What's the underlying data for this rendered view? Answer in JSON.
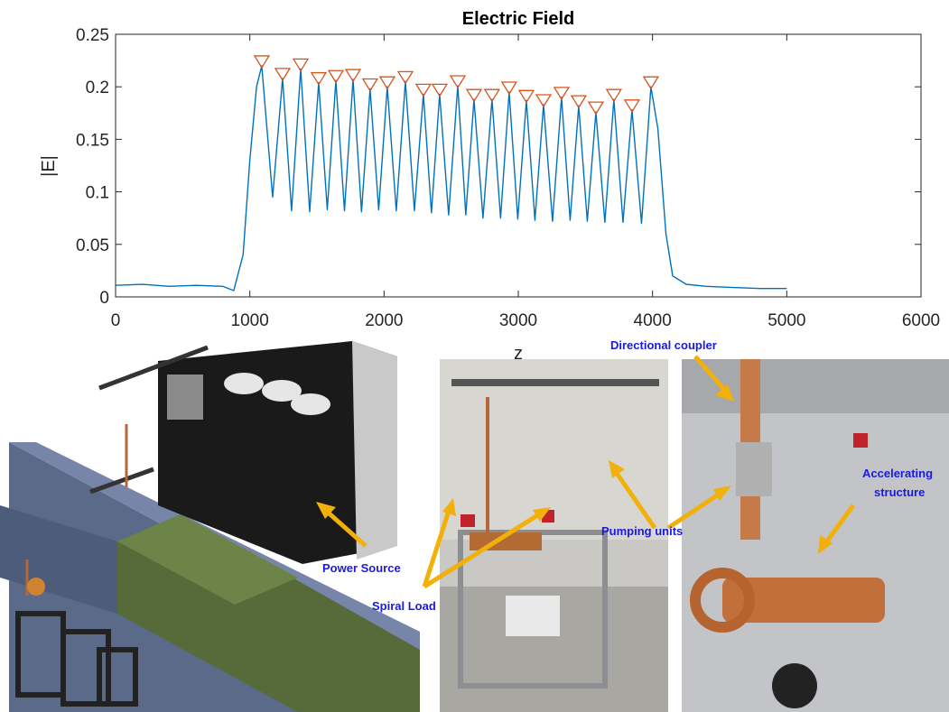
{
  "chart_data": {
    "type": "line",
    "title": "Electric Field",
    "xlabel": "z",
    "ylabel": "|E|",
    "xlim": [
      0,
      6000
    ],
    "xticks": [
      0,
      1000,
      2000,
      3000,
      4000,
      5000,
      6000
    ],
    "ylim": [
      0,
      0.25
    ],
    "yticks": [
      0,
      0.05,
      0.1,
      0.15,
      0.2,
      0.25
    ],
    "series": [
      {
        "color": "#0072bd",
        "marker": "none",
        "x": [
          0,
          200,
          400,
          600,
          800,
          880,
          950,
          1000,
          1050,
          1089,
          1170,
          1244,
          1311,
          1379,
          1446,
          1513,
          1577,
          1641,
          1705,
          1769,
          1832,
          1896,
          1960,
          2024,
          2091,
          2159,
          2226,
          2293,
          2353,
          2414,
          2481,
          2549,
          2609,
          2670,
          2737,
          2804,
          2868,
          2932,
          2996,
          3060,
          3124,
          3188,
          3255,
          3322,
          3386,
          3450,
          3514,
          3578,
          3645,
          3712,
          3780,
          3847,
          3918,
          3988,
          4040,
          4100,
          4150,
          4250,
          4400,
          4600,
          4800,
          5000
        ],
        "values": [
          0.011,
          0.012,
          0.01,
          0.011,
          0.01,
          0.006,
          0.04,
          0.13,
          0.2,
          0.22,
          0.095,
          0.208,
          0.082,
          0.217,
          0.081,
          0.204,
          0.083,
          0.206,
          0.082,
          0.207,
          0.081,
          0.198,
          0.083,
          0.2,
          0.082,
          0.205,
          0.082,
          0.193,
          0.08,
          0.193,
          0.078,
          0.201,
          0.078,
          0.188,
          0.075,
          0.188,
          0.075,
          0.195,
          0.074,
          0.187,
          0.073,
          0.183,
          0.072,
          0.19,
          0.073,
          0.182,
          0.072,
          0.176,
          0.071,
          0.188,
          0.071,
          0.178,
          0.07,
          0.2,
          0.16,
          0.06,
          0.02,
          0.012,
          0.01,
          0.009,
          0.008,
          0.008
        ]
      },
      {
        "color": "#d95319",
        "marker": "triangle-down",
        "x": [
          1089,
          1244,
          1379,
          1513,
          1641,
          1769,
          1896,
          2024,
          2159,
          2293,
          2414,
          2549,
          2670,
          2804,
          2932,
          3060,
          3188,
          3322,
          3450,
          3578,
          3712,
          3847,
          3988
        ],
        "values": [
          0.22,
          0.208,
          0.217,
          0.204,
          0.206,
          0.207,
          0.198,
          0.2,
          0.205,
          0.193,
          0.193,
          0.201,
          0.188,
          0.188,
          0.195,
          0.187,
          0.183,
          0.19,
          0.182,
          0.176,
          0.188,
          0.178,
          0.2
        ]
      }
    ]
  },
  "photo_labels": {
    "directional_coupler": "Directional coupler",
    "pumping_units": "Pumping units",
    "spiral_load": "Spiral Load",
    "power_source": "Power Source",
    "accelerating_structure": [
      "Accelerating",
      "structure"
    ]
  }
}
